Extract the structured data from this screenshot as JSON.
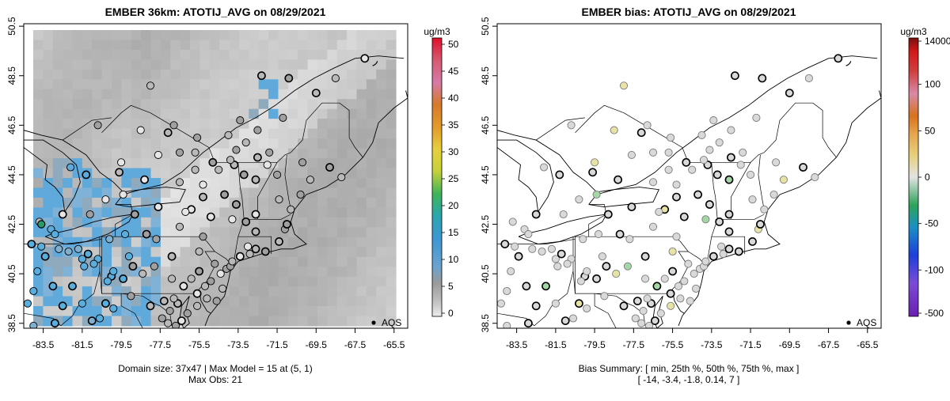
{
  "chart_data": [
    {
      "type": "heatmap",
      "title": "EMBER 36km: ATOTIJ_AVG on 08/29/2021",
      "xlabel": "",
      "ylabel": "",
      "xlim": [
        -84.5,
        -64.8
      ],
      "ylim": [
        38.3,
        50.6
      ],
      "x_ticks": [
        "-83.5",
        "-81.5",
        "-79.5",
        "-77.5",
        "-75.5",
        "-73.5",
        "-71.5",
        "-69.5",
        "-67.5",
        "-65.5"
      ],
      "y_ticks": [
        "38.5",
        "40.5",
        "42.5",
        "44.5",
        "46.5",
        "48.5",
        "50.5"
      ],
      "grid": "37x47",
      "max_model": 15,
      "max_obs": 21,
      "colorbar": {
        "unit": "ug/m3",
        "ticks": [
          "0",
          "5",
          "10",
          "15",
          "20",
          "25",
          "30",
          "35",
          "40",
          "45",
          "50"
        ]
      },
      "legend": "AQS",
      "footer_line1": "Domain size: 37x47 | Max Model = 15 at (5, 1)",
      "footer_line2": "Max Obs: 21"
    },
    {
      "type": "scatter",
      "title": "EMBER bias: ATOTIJ_AVG on 08/29/2021",
      "xlim": [
        -84.5,
        -64.8
      ],
      "ylim": [
        38.3,
        50.6
      ],
      "x_ticks": [
        "-83.5",
        "-81.5",
        "-79.5",
        "-77.5",
        "-75.5",
        "-73.5",
        "-71.5",
        "-69.5",
        "-67.5",
        "-65.5"
      ],
      "y_ticks": [
        "38.5",
        "40.5",
        "42.5",
        "44.5",
        "46.5",
        "48.5",
        "50.5"
      ],
      "colorbar": {
        "unit": "ug/m3",
        "ticks": [
          "14000",
          "100",
          "50",
          "0",
          "-50",
          "-100",
          "-500"
        ]
      },
      "legend": "AQS",
      "bias_summary": {
        "min": -14,
        "p25": -3.4,
        "p50": -1.8,
        "p75": 0.14,
        "max": 7
      },
      "footer_line1": "Bias Summary: [ min, 25th %, 50th %, 75th %, max ]",
      "footer_line2": "[ -14,   -3.4,   -1.8,   0.14,   7 ]"
    }
  ],
  "colors": {
    "grid_base": "#b4b4b4",
    "blue": "#56a6dc",
    "bias_neutral": "#d9d9d9"
  }
}
